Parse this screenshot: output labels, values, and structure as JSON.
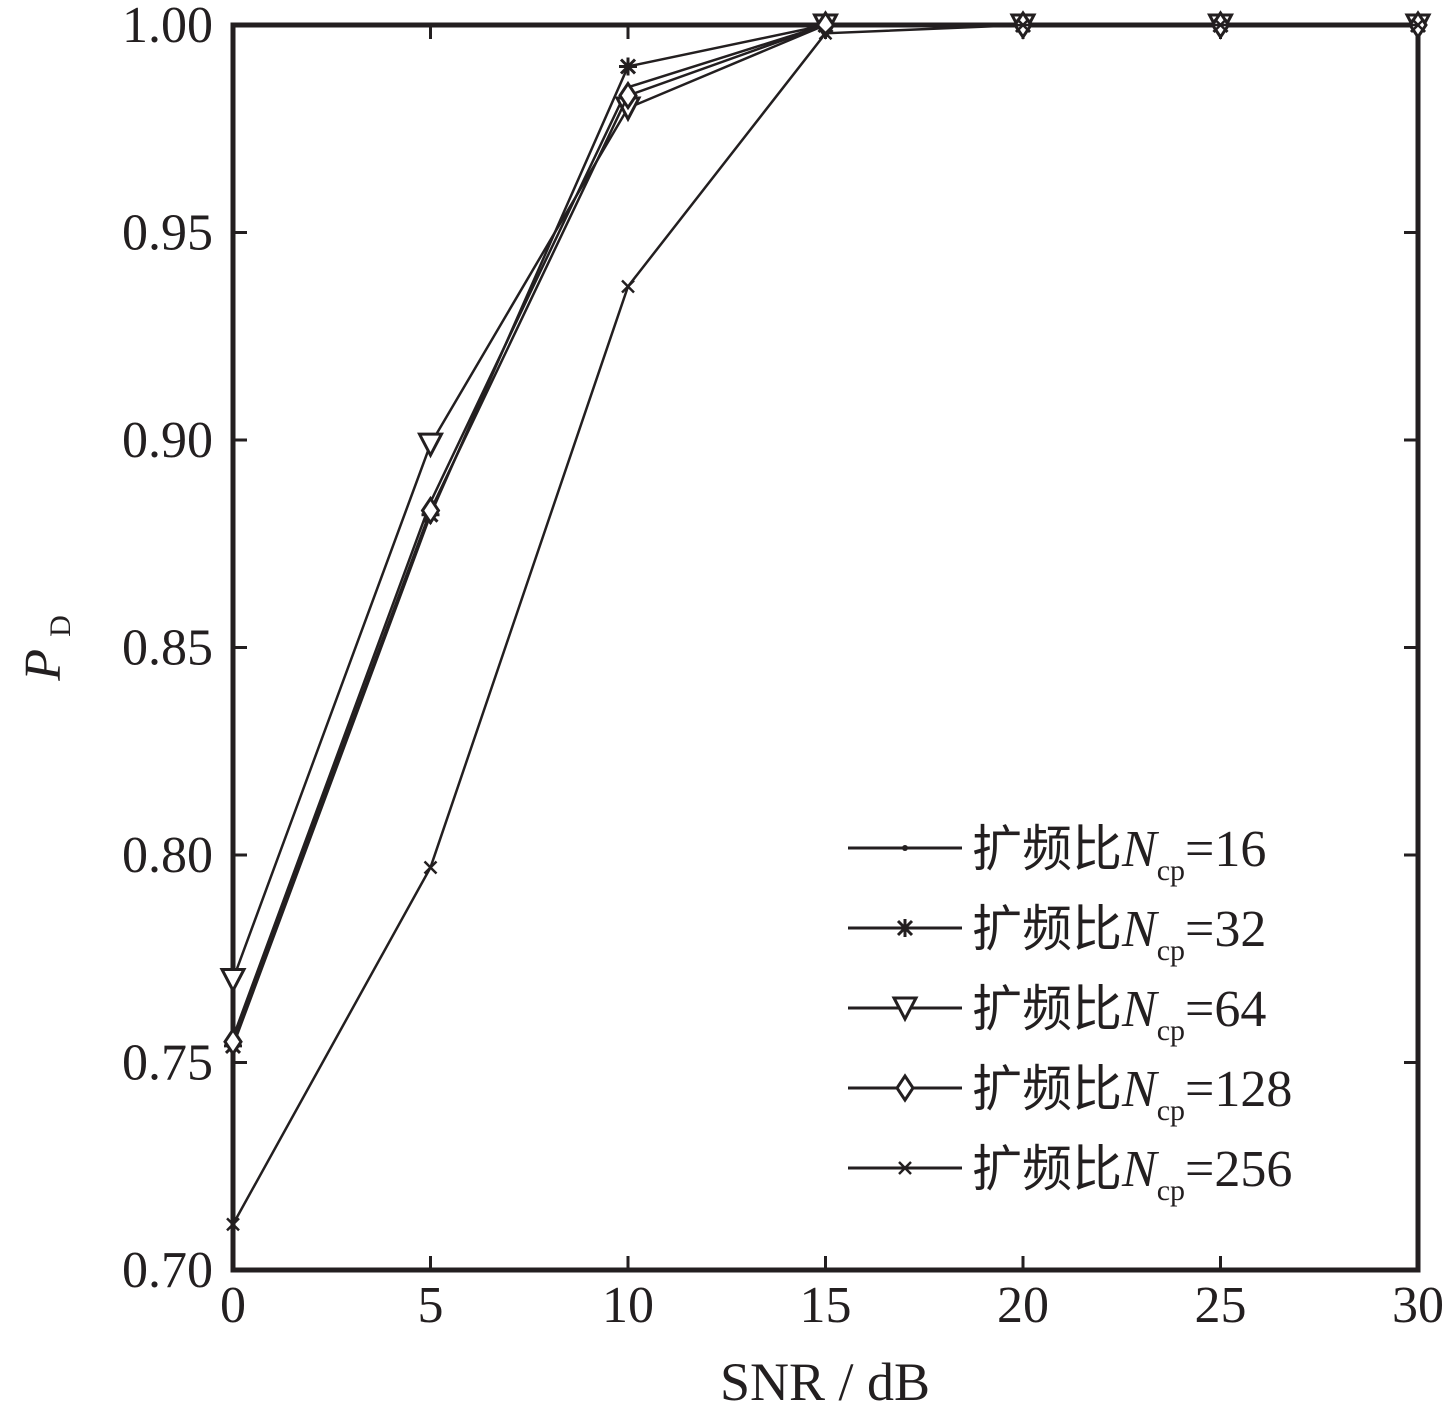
{
  "chart_data": {
    "type": "line",
    "xlabel": "SNR / dB",
    "ylabel_main": "P",
    "ylabel_sub": "D",
    "xlim": [
      0,
      30
    ],
    "ylim": [
      0.7,
      1.0
    ],
    "x_ticks": [
      0,
      5,
      10,
      15,
      20,
      25,
      30
    ],
    "x_tick_labels": [
      "0",
      "5",
      "10",
      "15",
      "20",
      "25",
      "30"
    ],
    "y_ticks": [
      0.7,
      0.75,
      0.8,
      0.85,
      0.9,
      0.95,
      1.0
    ],
    "y_tick_labels": [
      "0.70",
      "0.75",
      "0.80",
      "0.85",
      "0.90",
      "0.95",
      "1.00"
    ],
    "grid": false,
    "legend_position": "bottom-right",
    "line_color": "#231f20",
    "x": [
      0,
      5,
      10,
      15,
      20,
      25,
      30
    ],
    "series": [
      {
        "legend_prefix": "扩频比",
        "legend_var": "N",
        "legend_sub": "cp",
        "legend_suffix": "=16",
        "marker": "dot",
        "values": [
          0.756,
          0.885,
          0.985,
          1.0,
          1.0,
          1.0,
          1.0
        ]
      },
      {
        "legend_prefix": "扩频比",
        "legend_var": "N",
        "legend_sub": "cp",
        "legend_suffix": "=32",
        "marker": "asterisk",
        "values": [
          0.754,
          0.882,
          0.99,
          1.0,
          1.0,
          1.0,
          1.0
        ]
      },
      {
        "legend_prefix": "扩频比",
        "legend_var": "N",
        "legend_sub": "cp",
        "legend_suffix": "=64",
        "marker": "triangle-down",
        "values": [
          0.77,
          0.899,
          0.98,
          1.0,
          1.0,
          1.0,
          1.0
        ]
      },
      {
        "legend_prefix": "扩频比",
        "legend_var": "N",
        "legend_sub": "cp",
        "legend_suffix": "=128",
        "marker": "diamond",
        "values": [
          0.755,
          0.883,
          0.983,
          1.0,
          1.0,
          1.0,
          1.0
        ]
      },
      {
        "legend_prefix": "扩频比",
        "legend_var": "N",
        "legend_sub": "cp",
        "legend_suffix": "=256",
        "marker": "x",
        "values": [
          0.711,
          0.797,
          0.937,
          0.998,
          1.0,
          1.0,
          1.0
        ]
      }
    ]
  }
}
